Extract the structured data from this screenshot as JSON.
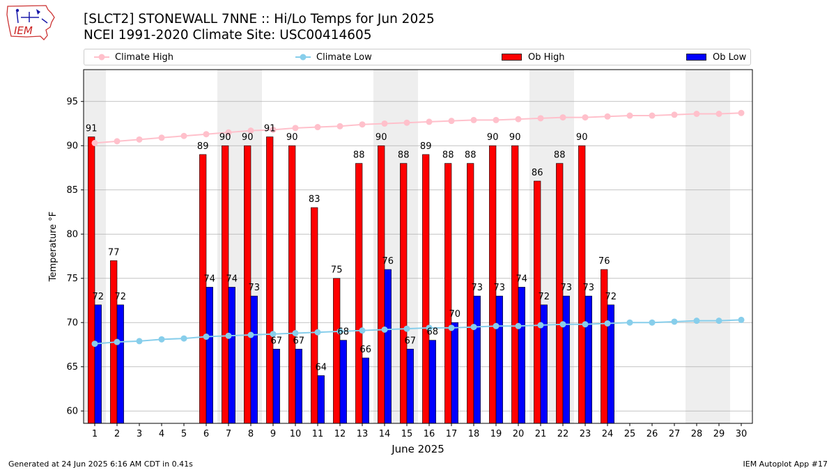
{
  "logo": {
    "text": "IEM"
  },
  "title": {
    "line1": "[SLCT2] STONEWALL 7NNE :: Hi/Lo Temps for Jun 2025",
    "line2": "NCEI 1991-2020 Climate Site: USC00414605"
  },
  "legend": {
    "climate_high": "Climate High",
    "climate_low": "Climate Low",
    "ob_high": "Ob High",
    "ob_low": "Ob Low"
  },
  "footer": {
    "left": "Generated at 24 Jun 2025 6:16 AM CDT in 0.41s",
    "right": "IEM Autoplot App #17"
  },
  "colors": {
    "ob_high": "#ff0000",
    "ob_low": "#0000ff",
    "climate_high": "#ffc0cb",
    "climate_low": "#87ceeb",
    "weekend_shade": "#eeeeee",
    "grid": "#b0b0b0"
  },
  "chart_data": {
    "type": "bar",
    "xlabel": "June 2025",
    "ylabel": "Temperature °F",
    "xlim": [
      0.5,
      30.5
    ],
    "ylim": [
      58.6,
      98.6
    ],
    "yticks": [
      60,
      65,
      70,
      75,
      80,
      85,
      90,
      95
    ],
    "grid": true,
    "legend_position": "top",
    "categories": [
      1,
      2,
      3,
      4,
      5,
      6,
      7,
      8,
      9,
      10,
      11,
      12,
      13,
      14,
      15,
      16,
      17,
      18,
      19,
      20,
      21,
      22,
      23,
      24,
      25,
      26,
      27,
      28,
      29,
      30
    ],
    "shaded_days": [
      1,
      7,
      8,
      14,
      15,
      21,
      22,
      28,
      29
    ],
    "series": [
      {
        "name": "Ob High",
        "kind": "bar",
        "values": [
          91,
          77,
          null,
          null,
          null,
          89,
          90,
          90,
          91,
          90,
          83,
          75,
          88,
          90,
          88,
          89,
          88,
          88,
          90,
          90,
          86,
          88,
          90,
          76,
          null,
          null,
          null,
          null,
          null,
          null
        ]
      },
      {
        "name": "Ob Low",
        "kind": "bar",
        "values": [
          72,
          72,
          null,
          null,
          null,
          74,
          74,
          73,
          67,
          67,
          64,
          68,
          66,
          76,
          67,
          68,
          70,
          73,
          73,
          74,
          72,
          73,
          73,
          72,
          null,
          null,
          null,
          null,
          null,
          null
        ]
      },
      {
        "name": "Climate High",
        "kind": "line",
        "values": [
          90.3,
          90.5,
          90.7,
          90.9,
          91.1,
          91.3,
          91.5,
          91.7,
          91.8,
          92.0,
          92.1,
          92.2,
          92.4,
          92.5,
          92.6,
          92.7,
          92.8,
          92.9,
          92.9,
          93.0,
          93.1,
          93.2,
          93.2,
          93.3,
          93.4,
          93.4,
          93.5,
          93.6,
          93.6,
          93.7
        ]
      },
      {
        "name": "Climate Low",
        "kind": "line",
        "values": [
          67.6,
          67.8,
          67.9,
          68.1,
          68.2,
          68.4,
          68.5,
          68.6,
          68.7,
          68.8,
          68.9,
          69.0,
          69.1,
          69.2,
          69.3,
          69.4,
          69.4,
          69.5,
          69.6,
          69.6,
          69.7,
          69.8,
          69.8,
          69.9,
          70.0,
          70.0,
          70.1,
          70.2,
          70.2,
          70.3
        ]
      }
    ]
  }
}
